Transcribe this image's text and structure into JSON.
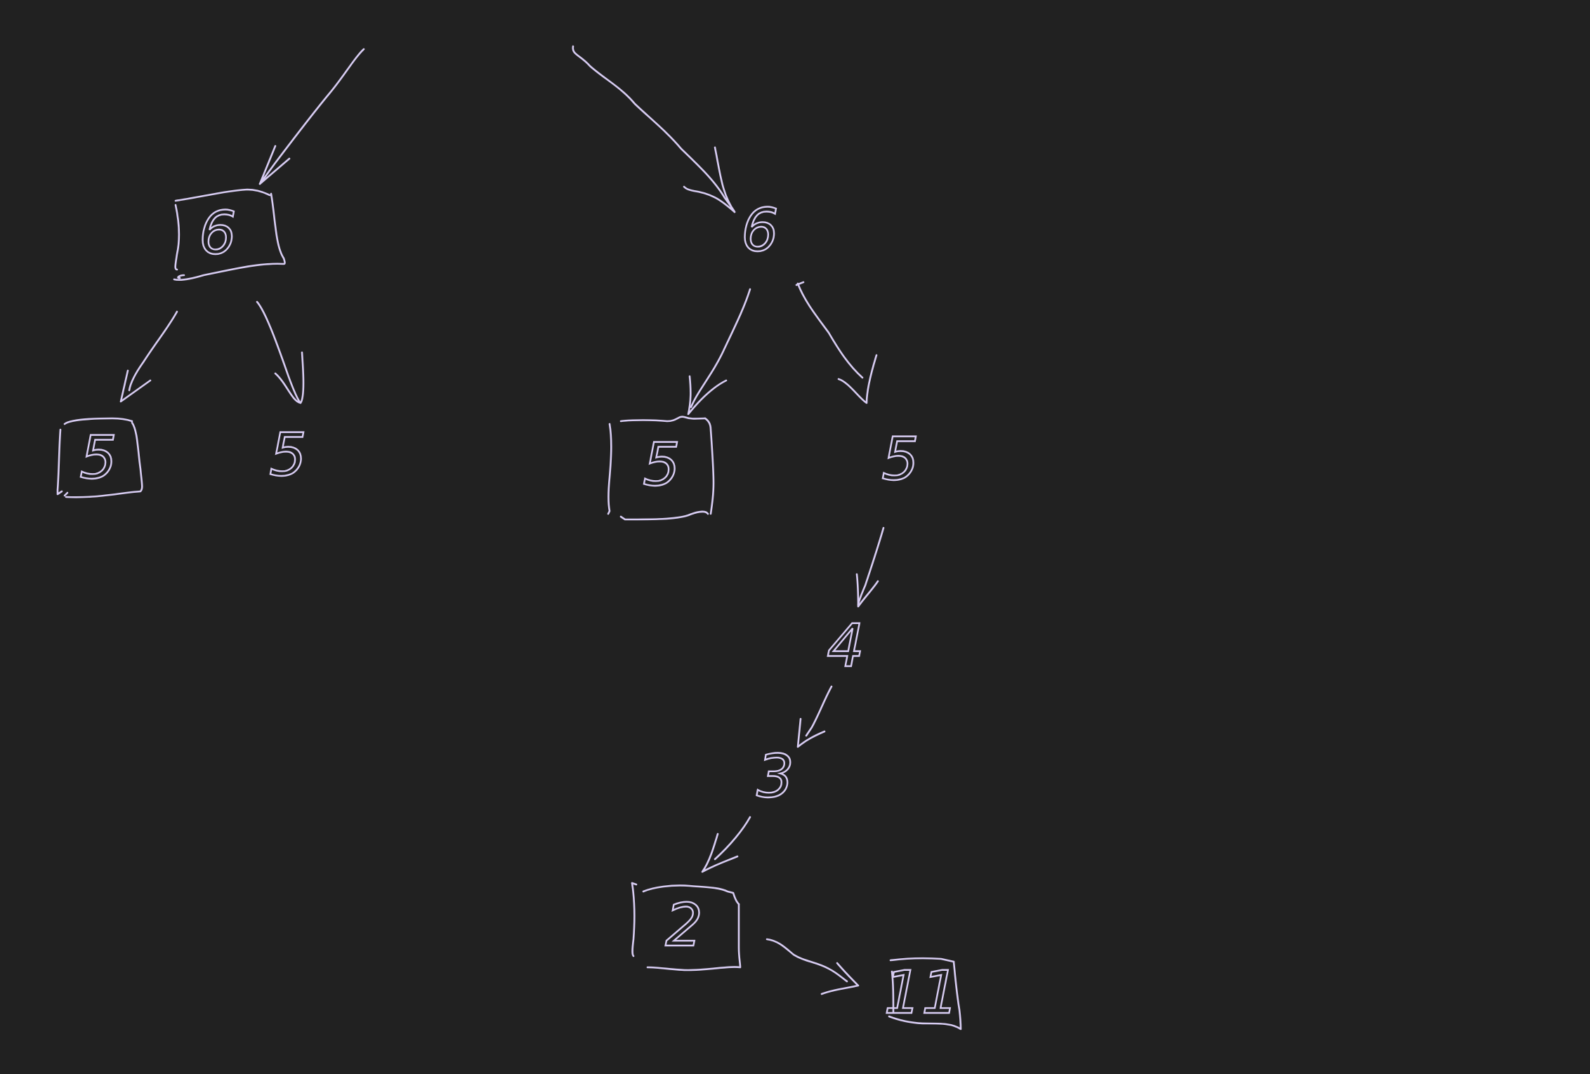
{
  "diagram": {
    "style": {
      "background": "#212121",
      "ink": "#d7ccf2"
    },
    "nodes": [
      {
        "id": "left-root",
        "label": "6",
        "boxed": true
      },
      {
        "id": "left-left-leaf",
        "label": "5",
        "boxed": true
      },
      {
        "id": "left-right-leaf",
        "label": "5",
        "boxed": false
      },
      {
        "id": "right-root",
        "label": "6",
        "boxed": false
      },
      {
        "id": "right-left-leaf",
        "label": "5",
        "boxed": true
      },
      {
        "id": "right-right",
        "label": "5",
        "boxed": false
      },
      {
        "id": "chain-4",
        "label": "4",
        "boxed": false
      },
      {
        "id": "chain-3",
        "label": "3",
        "boxed": false
      },
      {
        "id": "chain-2",
        "label": "2",
        "boxed": true
      },
      {
        "id": "chain-11",
        "label": "11",
        "boxed": true
      }
    ],
    "edges": [
      {
        "from": "incoming-left",
        "to": "left-root"
      },
      {
        "from": "incoming-right",
        "to": "right-root"
      },
      {
        "from": "left-root",
        "to": "left-left-leaf"
      },
      {
        "from": "left-root",
        "to": "left-right-leaf"
      },
      {
        "from": "right-root",
        "to": "right-left-leaf"
      },
      {
        "from": "right-root",
        "to": "right-right"
      },
      {
        "from": "right-right",
        "to": "chain-4"
      },
      {
        "from": "chain-4",
        "to": "chain-3"
      },
      {
        "from": "chain-3",
        "to": "chain-2"
      },
      {
        "from": "chain-2",
        "to": "chain-11"
      }
    ]
  }
}
